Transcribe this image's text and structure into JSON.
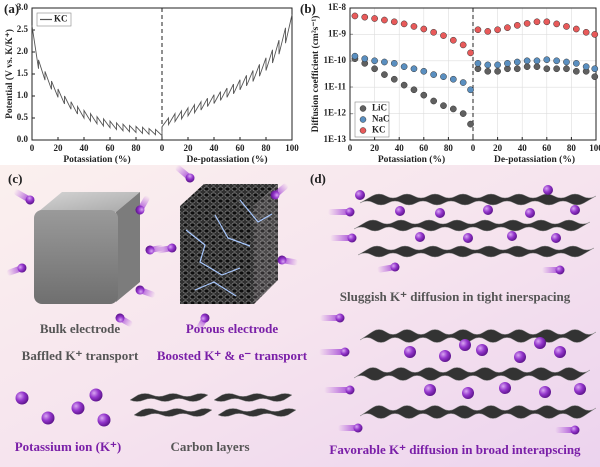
{
  "chart_data": [
    {
      "type": "line",
      "panel_label": "(a)",
      "ylabel": "Potential (V vs. K/K⁺)",
      "xlabels": [
        "Potassiation (%)",
        "De-potassiation (%)"
      ],
      "x": [
        0,
        5,
        5,
        10,
        10,
        15,
        15,
        20,
        20,
        25,
        25,
        30,
        30,
        35,
        35,
        40,
        40,
        45,
        45,
        50,
        50,
        55,
        55,
        60,
        60,
        65,
        65,
        70,
        70,
        75,
        75,
        80,
        80,
        85,
        85,
        90,
        90,
        95,
        95,
        100,
        100,
        105,
        105,
        110,
        110,
        115,
        115,
        120,
        120,
        125,
        125,
        130,
        130,
        135,
        135,
        140,
        140,
        145,
        145,
        150,
        150,
        155,
        155,
        160,
        160,
        165,
        165,
        170,
        170,
        175,
        175,
        180,
        180,
        185,
        185,
        190,
        190,
        195,
        195,
        200
      ],
      "series": [
        {
          "name": "KC",
          "color": "#555555",
          "values": [
            2.6,
            1.62,
            1.82,
            1.36,
            1.56,
            1.15,
            1.34,
            0.97,
            1.16,
            0.82,
            1.0,
            0.7,
            0.87,
            0.59,
            0.76,
            0.5,
            0.67,
            0.43,
            0.6,
            0.37,
            0.53,
            0.32,
            0.48,
            0.28,
            0.43,
            0.24,
            0.39,
            0.21,
            0.36,
            0.19,
            0.33,
            0.17,
            0.31,
            0.15,
            0.29,
            0.13,
            0.26,
            0.12,
            0.24,
            0.1,
            0.3,
            0.5,
            0.35,
            0.6,
            0.42,
            0.66,
            0.48,
            0.73,
            0.55,
            0.8,
            0.62,
            0.87,
            0.68,
            0.95,
            0.76,
            1.03,
            0.83,
            1.1,
            0.9,
            1.18,
            0.97,
            1.27,
            1.05,
            1.37,
            1.14,
            1.47,
            1.23,
            1.58,
            1.33,
            1.72,
            1.45,
            1.87,
            1.58,
            2.05,
            1.75,
            2.27,
            1.95,
            2.55,
            2.2,
            2.85
          ]
        }
      ],
      "xlim": [
        0,
        200
      ],
      "ylim": [
        0,
        3
      ],
      "xticks": [
        0,
        20,
        40,
        60,
        80,
        {
          "value": 100,
          "label": "0"
        },
        {
          "value": 120,
          "label": "20"
        },
        {
          "value": 140,
          "label": "40"
        },
        {
          "value": 160,
          "label": "60"
        },
        {
          "value": 180,
          "label": "80"
        },
        {
          "value": 200,
          "label": "100"
        }
      ],
      "yticks": [
        {
          "value": 0,
          "label": "0.0"
        },
        0.5,
        {
          "value": 1,
          "label": "1.0"
        },
        1.5,
        {
          "value": 2,
          "label": "2.0"
        },
        2.5,
        {
          "value": 3,
          "label": "3.0"
        }
      ],
      "grid": false,
      "legend": "upper left"
    },
    {
      "type": "scatter",
      "panel_label": "(b)",
      "ylabel": "Diffusion coefficient (cm²s⁻¹)",
      "xlabels": [
        "Potassiation (%)",
        "De-potassiation (%)"
      ],
      "x": [
        4,
        12,
        20,
        28,
        36,
        44,
        52,
        60,
        68,
        76,
        84,
        92,
        98,
        104,
        112,
        120,
        128,
        136,
        144,
        152,
        160,
        168,
        176,
        184,
        192,
        199
      ],
      "series": [
        {
          "name": "LiC",
          "color": "#606060",
          "values": [
            1.2e-10,
            8e-11,
            5e-11,
            3e-11,
            2e-11,
            1.2e-11,
            8e-12,
            5e-12,
            3e-12,
            2e-12,
            1.5e-12,
            1e-12,
            4e-13,
            5e-11,
            4e-11,
            4e-11,
            5e-11,
            5e-11,
            6e-11,
            6e-11,
            5e-11,
            5e-11,
            5e-11,
            4e-11,
            4e-11,
            2.5e-11
          ]
        },
        {
          "name": "NaC",
          "color": "#5a8fc0",
          "values": [
            1.5e-10,
            1.2e-10,
            1e-10,
            9e-11,
            8e-11,
            6e-11,
            5e-11,
            4e-11,
            3e-11,
            2.5e-11,
            2e-11,
            1.5e-11,
            8e-12,
            8e-11,
            7e-11,
            7e-11,
            8e-11,
            9e-11,
            1e-10,
            1e-10,
            1.1e-10,
            1e-10,
            9e-11,
            8e-11,
            6e-11,
            5e-11
          ]
        },
        {
          "name": "KC",
          "color": "#e85a5a",
          "values": [
            5e-09,
            4.5e-09,
            4e-09,
            3.5e-09,
            3e-09,
            2.5e-09,
            2e-09,
            1.6e-09,
            1.2e-09,
            9e-10,
            6e-10,
            4e-10,
            2e-10,
            1.5e-09,
            1.3e-09,
            1.5e-09,
            1.8e-09,
            2.2e-09,
            2.6e-09,
            3e-09,
            3e-09,
            2.5e-09,
            2e-09,
            1.6e-09,
            1.2e-09,
            1e-09
          ]
        }
      ],
      "xlim": [
        0,
        200
      ],
      "ylim": [
        1e-13,
        1e-08
      ],
      "log_y": true,
      "xticks": [
        0,
        20,
        40,
        60,
        80,
        {
          "value": 100,
          "label": "0"
        },
        {
          "value": 120,
          "label": "20"
        },
        {
          "value": 140,
          "label": "40"
        },
        {
          "value": 160,
          "label": "60"
        },
        {
          "value": 180,
          "label": "80"
        },
        {
          "value": 200,
          "label": "100"
        }
      ],
      "yticks": [
        {
          "value": 1e-13,
          "label": "1E-13"
        },
        {
          "value": 1e-12,
          "label": "1E-12"
        },
        {
          "value": 1e-11,
          "label": "1E-11"
        },
        {
          "value": 1e-10,
          "label": "1E-10"
        },
        {
          "value": 1e-09,
          "label": "1E-9"
        },
        {
          "value": 1e-08,
          "label": "1E-8"
        }
      ],
      "grid": true,
      "legend": "lower left"
    }
  ],
  "panel_c": {
    "label": "(c)",
    "texts": [
      "Bulk electrode",
      "Baffled K⁺ transport",
      "Porous electrode",
      "Boosted K⁺ & e⁻ transport",
      "Potassium ion (K⁺)",
      "Carbon layers"
    ]
  },
  "panel_d": {
    "label": "(d)",
    "texts": [
      "Sluggish K⁺ diffusion in tight inerspacing",
      "Favorable K⁺ diffusion in broad interapscing"
    ]
  }
}
